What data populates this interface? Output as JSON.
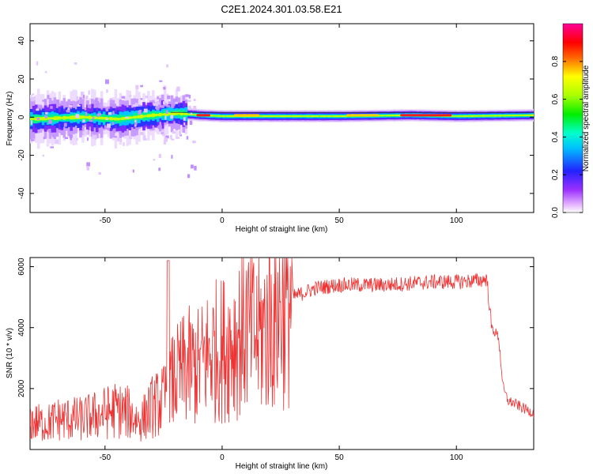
{
  "title": "C2E1.2024.301.03.58.E21",
  "chart_data": [
    {
      "type": "heatmap",
      "title": "C2E1.2024.301.03.58.E21",
      "xlabel": "Height of straight line (km)",
      "ylabel": "Frequency (Hz)",
      "xlim": [
        -82,
        133
      ],
      "ylim": [
        -50,
        49
      ],
      "xticks": [
        -50,
        0,
        50,
        100
      ],
      "yticks": [
        -40,
        -20,
        0,
        20,
        40
      ],
      "colorbar": {
        "label": "Normalized spectral amplitude",
        "range": [
          0,
          1
        ],
        "ticks": [
          "0.0",
          "0.2",
          "0.4",
          "0.6",
          "0.8"
        ],
        "colormap": "rainbow (white-violet-blue-cyan-green-yellow-red-magenta)"
      },
      "ridge": {
        "description": "narrow band centered near 0 Hz along entire height range",
        "center_hz": [
          {
            "x": -82,
            "y": -1
          },
          {
            "x": -60,
            "y": 0
          },
          {
            "x": -45,
            "y": -1
          },
          {
            "x": -30,
            "y": 1
          },
          {
            "x": -20,
            "y": 2
          },
          {
            "x": -10,
            "y": 1
          },
          {
            "x": 0,
            "y": 0.5
          },
          {
            "x": 20,
            "y": 0.5
          },
          {
            "x": 50,
            "y": 0.5
          },
          {
            "x": 80,
            "y": 1
          },
          {
            "x": 100,
            "y": 0.5
          },
          {
            "x": 133,
            "y": 1
          }
        ],
        "peaks": [
          {
            "x": -8,
            "y": 1,
            "amplitude": 0.85
          },
          {
            "x": 8,
            "y": 1,
            "amplitude": 0.8
          },
          {
            "x": 13,
            "y": 1,
            "amplitude": 0.75
          },
          {
            "x": 60,
            "y": 1,
            "amplitude": 0.7
          },
          {
            "x": 87,
            "y": 1,
            "amplitude": 0.9
          }
        ]
      }
    },
    {
      "type": "line",
      "xlabel": "Height of straight line (km)",
      "ylabel": "SNR (10 * v/v)",
      "xlim": [
        -82,
        133
      ],
      "ylim": [
        0,
        6300
      ],
      "xticks": [
        -50,
        0,
        50,
        100
      ],
      "yticks": [
        2000,
        4000,
        6000
      ],
      "color": "#ee3333",
      "series": [
        {
          "values_note": "approximate envelope of a noisy trace",
          "x": [
            -82,
            -75,
            -70,
            -60,
            -50,
            -45,
            -40,
            -35,
            -30,
            -25,
            -23,
            -20,
            -15,
            -10,
            -5,
            0,
            5,
            10,
            15,
            20,
            25,
            30,
            40,
            50,
            60,
            70,
            80,
            90,
            100,
            110,
            113,
            115,
            118,
            120,
            122,
            125,
            130,
            133
          ],
          "y": [
            900,
            850,
            1000,
            1000,
            1200,
            1300,
            1200,
            900,
            1400,
            1600,
            2000,
            2300,
            2700,
            2700,
            3200,
            3300,
            3600,
            4000,
            3700,
            4100,
            4700,
            5000,
            5300,
            5400,
            5400,
            5400,
            5450,
            5500,
            5500,
            5550,
            5600,
            4000,
            3700,
            2000,
            1600,
            1500,
            1300,
            1200
          ]
        }
      ]
    }
  ]
}
